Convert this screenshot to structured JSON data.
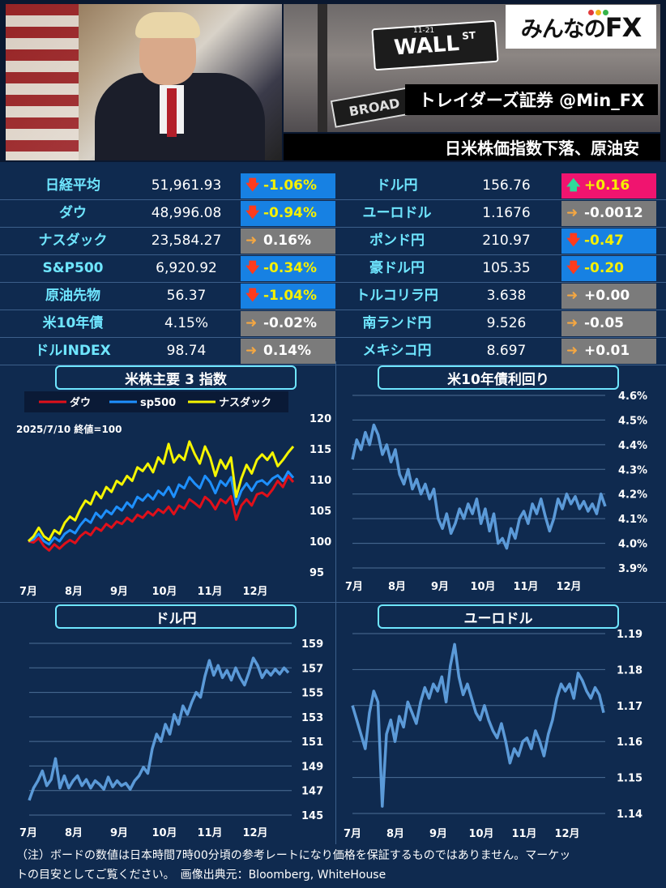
{
  "header": {
    "logo_text": "みんなの",
    "logo_fx": "FX",
    "logo_dot_colors": [
      "#e23b3b",
      "#f2b51a",
      "#36b44a"
    ],
    "street_sign": "WALL",
    "street_sign_suffix": "ST",
    "street_number": "11-21",
    "broad_sign": "BROAD",
    "tagline": "トレイダーズ証券 @Min_FX",
    "headline": "日米株価指数下落、原油安"
  },
  "markets": {
    "left": [
      {
        "name": "日経平均",
        "value": "51,961.93",
        "change": "-1.06%",
        "dir": "down",
        "color": "blue"
      },
      {
        "name": "ダウ",
        "value": "48,996.08",
        "change": "-0.94%",
        "dir": "down",
        "color": "blue"
      },
      {
        "name": "ナスダック",
        "value": "23,584.27",
        "change": "0.16%",
        "dir": "flat",
        "color": "gray"
      },
      {
        "name": "S&P500",
        "value": "6,920.92",
        "change": "-0.34%",
        "dir": "down",
        "color": "blue"
      },
      {
        "name": "原油先物",
        "value": "56.37",
        "change": "-1.04%",
        "dir": "down",
        "color": "blue"
      },
      {
        "name": "米10年債",
        "value": "4.15%",
        "change": "-0.02%",
        "dir": "flat",
        "color": "gray"
      },
      {
        "name": "ドルINDEX",
        "value": "98.74",
        "change": "0.14%",
        "dir": "flat",
        "color": "gray"
      }
    ],
    "right": [
      {
        "name": "ドル円",
        "value": "156.76",
        "change": "+0.16",
        "dir": "up",
        "color": "pink"
      },
      {
        "name": "ユーロドル",
        "value": "1.1676",
        "change": "-0.0012",
        "dir": "flat",
        "color": "gray"
      },
      {
        "name": "ポンド円",
        "value": "210.97",
        "change": "-0.47",
        "dir": "down",
        "color": "blue"
      },
      {
        "name": "豪ドル円",
        "value": "105.35",
        "change": "-0.20",
        "dir": "down",
        "color": "blue"
      },
      {
        "name": "トルコリラ円",
        "value": "3.638",
        "change": "+0.00",
        "dir": "flat",
        "color": "gray"
      },
      {
        "name": "南ランド円",
        "value": "9.526",
        "change": "-0.05",
        "dir": "flat",
        "color": "gray"
      },
      {
        "name": "メキシコ円",
        "value": "8.697",
        "change": "+0.01",
        "dir": "flat",
        "color": "gray"
      }
    ]
  },
  "chart_data": [
    {
      "id": "us-stocks",
      "type": "line",
      "title": "米株主要 3 指数",
      "note": "2025/7/10 終値=100",
      "x_ticks": [
        "7月",
        "8月",
        "9月",
        "10月",
        "11月",
        "12月"
      ],
      "ylim": [
        95,
        120
      ],
      "y_ticks": [
        95,
        100,
        105,
        110,
        115,
        120
      ],
      "legend_position": "top",
      "series": [
        {
          "name": "ダウ",
          "color": "#e0101a",
          "values": [
            100,
            99.8,
            100.5,
            99.2,
            98.5,
            99.5,
            98.8,
            99.6,
            100.2,
            99.7,
            100.8,
            101.5,
            101,
            102.2,
            101.7,
            102.8,
            102.2,
            103.2,
            102.8,
            103.8,
            103.2,
            104.3,
            103.8,
            104.8,
            104.2,
            105.2,
            104.6,
            105.6,
            104.4,
            105.8,
            105.3,
            106.8,
            106.2,
            105.5,
            107.2,
            106.5,
            105.2,
            106.8,
            106.2,
            107.3,
            103.5,
            105.8,
            106.8,
            105.8,
            107.6,
            107.9,
            107.3,
            108.4,
            109.8,
            108.8,
            110.6,
            109.6
          ]
        },
        {
          "name": "sp500",
          "color": "#1e90ff",
          "values": [
            100,
            100.3,
            101.2,
            100,
            99.5,
            100.6,
            100,
            101.2,
            101.8,
            101.3,
            102.6,
            103.6,
            103,
            104.6,
            103.8,
            105,
            104.4,
            105.6,
            105,
            106.3,
            105.5,
            107.2,
            106.6,
            107.6,
            106.8,
            108.2,
            107.5,
            108.8,
            107.2,
            109.2,
            108.6,
            110.4,
            109.4,
            108.6,
            110.6,
            109.6,
            107.8,
            109.8,
            109,
            110.4,
            106,
            108.2,
            109.4,
            108.2,
            109.6,
            109.9,
            109.2,
            110.2,
            110.7,
            109.8,
            111.3,
            110.3
          ]
        },
        {
          "name": "ナスダック",
          "color": "#f5f500",
          "values": [
            100,
            100.8,
            102.2,
            100.8,
            100.2,
            101.8,
            101.2,
            103,
            104,
            103.4,
            105.2,
            106.6,
            106,
            108,
            107,
            108.8,
            108,
            109.8,
            109.2,
            110.6,
            109.8,
            112,
            111.4,
            112.6,
            111.2,
            113.6,
            112.6,
            115.8,
            112.8,
            114,
            113.2,
            116.2,
            114.2,
            112.6,
            115.4,
            113.6,
            110.6,
            113.2,
            111.8,
            113.6,
            107.2,
            110.2,
            112.4,
            111,
            113.2,
            114.1,
            113.2,
            114.4,
            112.2,
            113.2,
            114.4,
            115.4
          ]
        }
      ]
    },
    {
      "id": "us10y",
      "type": "line",
      "title": "米10年債利回り",
      "x_ticks": [
        "7月",
        "8月",
        "9月",
        "10月",
        "11月",
        "12月"
      ],
      "ylim": [
        3.9,
        4.6
      ],
      "y_ticks": [
        "3.9%",
        "4.0%",
        "4.1%",
        "4.2%",
        "4.3%",
        "4.4%",
        "4.5%",
        "4.6%"
      ],
      "series": [
        {
          "name": "",
          "color": "#5b9ad8",
          "values": [
            4.34,
            4.42,
            4.38,
            4.45,
            4.4,
            4.48,
            4.44,
            4.36,
            4.4,
            4.33,
            4.38,
            4.28,
            4.24,
            4.3,
            4.22,
            4.26,
            4.2,
            4.24,
            4.18,
            4.22,
            4.1,
            4.06,
            4.12,
            4.04,
            4.08,
            4.14,
            4.1,
            4.16,
            4.12,
            4.18,
            4.08,
            4.14,
            4.05,
            4.12,
            4.0,
            4.02,
            3.98,
            4.06,
            4.02,
            4.1,
            4.13,
            4.08,
            4.16,
            4.12,
            4.18,
            4.11,
            4.05,
            4.1,
            4.18,
            4.14,
            4.2,
            4.16,
            4.19,
            4.14,
            4.17,
            4.13,
            4.16,
            4.12,
            4.2,
            4.15
          ]
        }
      ]
    },
    {
      "id": "usdjpy",
      "type": "line",
      "title": "ドル円",
      "x_ticks": [
        "7月",
        "8月",
        "9月",
        "10月",
        "11月",
        "12月"
      ],
      "ylim": [
        145,
        159
      ],
      "y_ticks": [
        145,
        147,
        149,
        151,
        153,
        155,
        157,
        159
      ],
      "series": [
        {
          "name": "",
          "color": "#5b9ad8",
          "values": [
            146.2,
            147.2,
            147.8,
            148.6,
            147.4,
            147.9,
            149.6,
            147.2,
            148.2,
            147.2,
            147.8,
            148.2,
            147.4,
            147.9,
            147.2,
            147.8,
            147.5,
            147.1,
            148.1,
            147.3,
            147.8,
            147.4,
            147.6,
            147.1,
            147.8,
            148.2,
            148.9,
            148.4,
            150.4,
            151.6,
            151.0,
            152.4,
            151.6,
            153.2,
            152.4,
            153.9,
            153.2,
            154.2,
            155.0,
            154.6,
            156.3,
            157.6,
            156.4,
            157.2,
            156.2,
            156.8,
            156.0,
            157.0,
            156.2,
            155.6,
            156.6,
            157.8,
            157.2,
            156.2,
            156.8,
            156.4,
            156.9,
            156.5,
            157.0,
            156.6
          ]
        }
      ]
    },
    {
      "id": "eurusd",
      "type": "line",
      "title": "ユーロドル",
      "x_ticks": [
        "7月",
        "8月",
        "9月",
        "10月",
        "11月",
        "12月"
      ],
      "ylim": [
        1.14,
        1.19
      ],
      "y_ticks": [
        "1.14",
        "1.15",
        "1.16",
        "1.17",
        "1.18",
        "1.19"
      ],
      "series": [
        {
          "name": "",
          "color": "#5b9ad8",
          "values": [
            1.17,
            1.166,
            1.162,
            1.158,
            1.168,
            1.174,
            1.171,
            1.142,
            1.162,
            1.166,
            1.16,
            1.167,
            1.164,
            1.171,
            1.168,
            1.165,
            1.171,
            1.175,
            1.172,
            1.176,
            1.174,
            1.178,
            1.171,
            1.181,
            1.187,
            1.178,
            1.173,
            1.176,
            1.172,
            1.168,
            1.166,
            1.17,
            1.166,
            1.163,
            1.161,
            1.165,
            1.16,
            1.154,
            1.158,
            1.156,
            1.16,
            1.161,
            1.158,
            1.163,
            1.16,
            1.156,
            1.162,
            1.166,
            1.172,
            1.176,
            1.174,
            1.176,
            1.172,
            1.179,
            1.177,
            1.174,
            1.172,
            1.175,
            1.173,
            1.168
          ]
        }
      ]
    }
  ],
  "footer": {
    "line1": "（注）ボードの数値は日本時間7時00分頃の参考レートになり価格を保証するものではありません。マーケッ",
    "line2": "トの目安としてご覧ください。　画像出典元：Bloomberg, WhiteHouse"
  }
}
